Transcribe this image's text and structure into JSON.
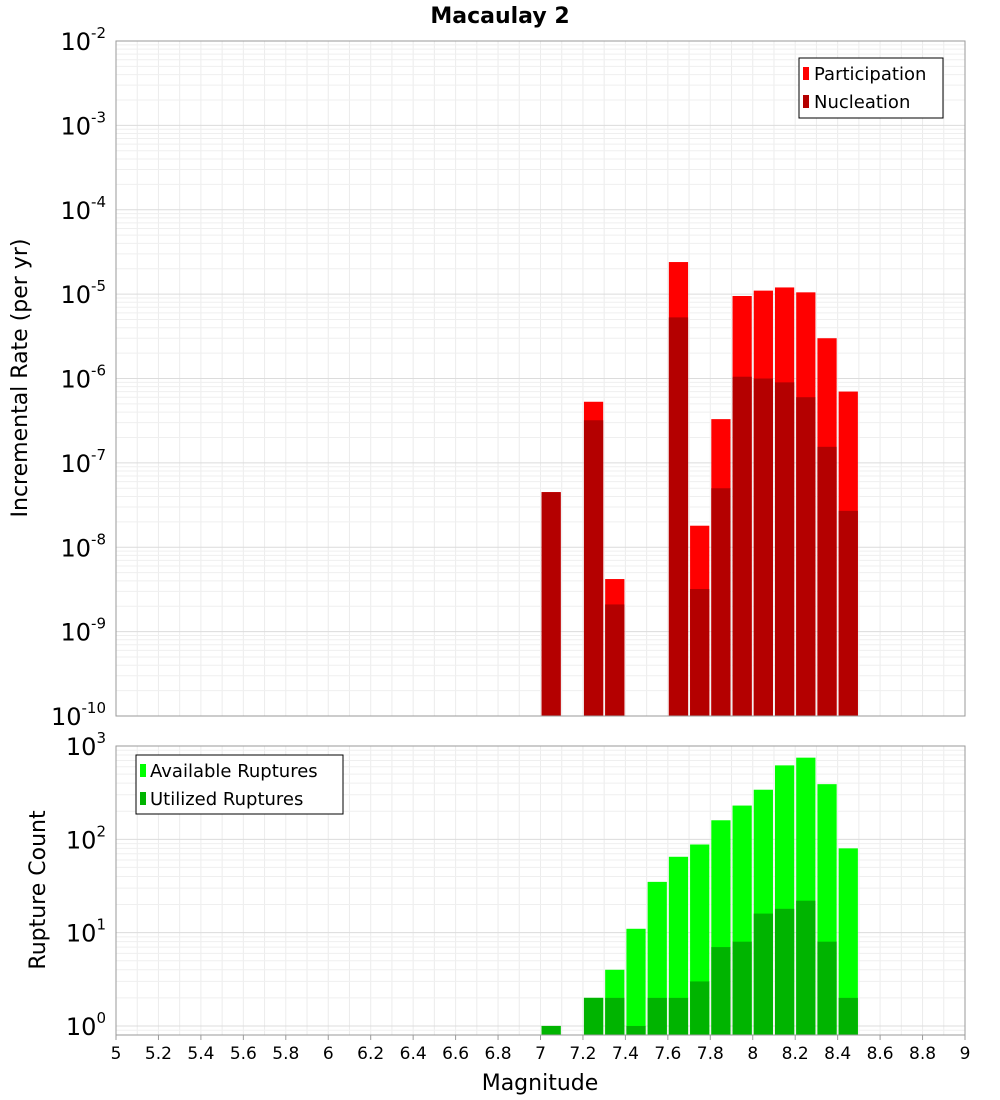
{
  "chart_data": [
    {
      "type": "bar",
      "title": "Macaulay 2",
      "ylabel": "Incremental Rate (per yr)",
      "xlabel": "",
      "yscale": "log",
      "ylim": [
        1e-10,
        0.01
      ],
      "xlim": [
        5,
        9
      ],
      "x": [
        7.05,
        7.15,
        7.25,
        7.35,
        7.45,
        7.55,
        7.65,
        7.75,
        7.85,
        7.95,
        8.05,
        8.15,
        8.25,
        8.35,
        8.45
      ],
      "series": [
        {
          "name": "Participation",
          "color": "#ff0000",
          "values": [
            4.5e-08,
            0,
            5.3e-07,
            4.2e-09,
            0,
            0,
            2.4e-05,
            1.8e-08,
            3.3e-07,
            9.5e-06,
            1.1e-05,
            1.2e-05,
            1.05e-05,
            3e-06,
            7e-07
          ]
        },
        {
          "name": "Nucleation",
          "color": "#b40000",
          "values": [
            4.5e-08,
            0,
            3.2e-07,
            2.1e-09,
            0,
            0,
            5.3e-06,
            3.2e-09,
            5e-08,
            1.05e-06,
            1e-06,
            9e-07,
            6e-07,
            1.55e-07,
            2.7e-08
          ]
        }
      ],
      "legend": "top-right",
      "grid": true
    },
    {
      "type": "bar",
      "title": "",
      "ylabel": "Rupture Count",
      "xlabel": "Magnitude",
      "yscale": "log",
      "ylim": [
        0.8,
        1000
      ],
      "xlim": [
        5,
        9
      ],
      "x": [
        7.05,
        7.15,
        7.25,
        7.35,
        7.45,
        7.55,
        7.65,
        7.75,
        7.85,
        7.95,
        8.05,
        8.15,
        8.25,
        8.35,
        8.45
      ],
      "series": [
        {
          "name": "Available Ruptures",
          "color": "#00ff00",
          "values": [
            1,
            0,
            2,
            4,
            11,
            35,
            65,
            88,
            160,
            230,
            340,
            620,
            750,
            390,
            80
          ]
        },
        {
          "name": "Utilized Ruptures",
          "color": "#00b400",
          "values": [
            1,
            0,
            2,
            2,
            1,
            2,
            2,
            3,
            7,
            8,
            16,
            18,
            22,
            8,
            2
          ]
        }
      ],
      "xticks": [
        "5",
        "5.2",
        "5.4",
        "5.6",
        "5.8",
        "6",
        "6.2",
        "6.4",
        "6.6",
        "6.8",
        "7",
        "7.2",
        "7.4",
        "7.6",
        "7.8",
        "8",
        "8.2",
        "8.4",
        "8.6",
        "8.8",
        "9"
      ],
      "legend": "top-left",
      "grid": true
    }
  ]
}
